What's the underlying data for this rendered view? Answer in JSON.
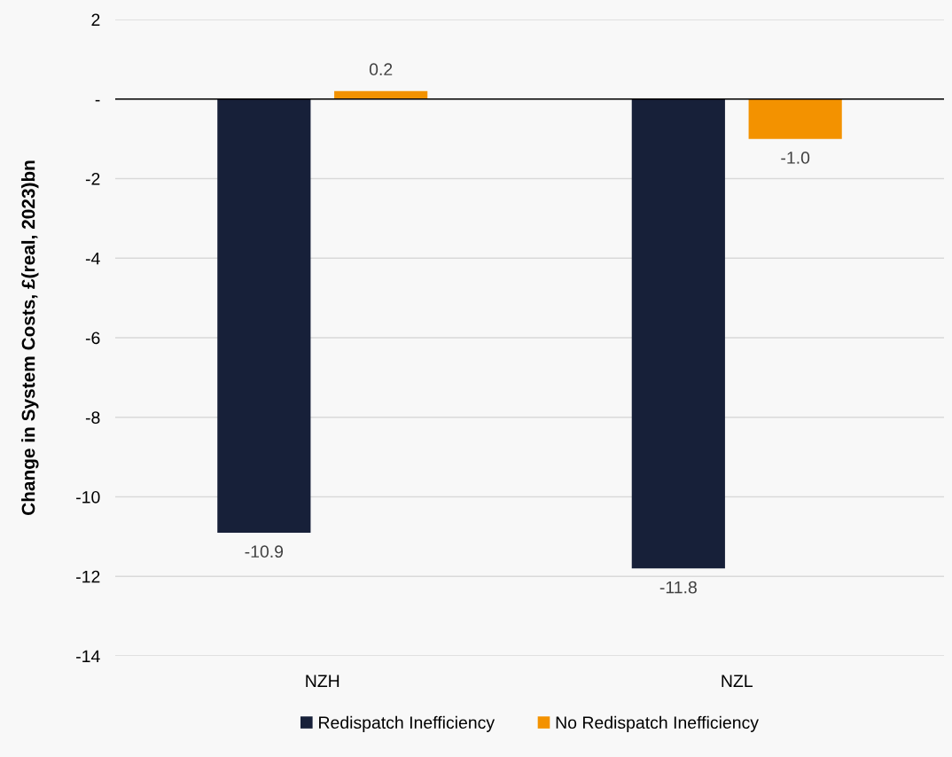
{
  "chart_data": {
    "type": "bar",
    "ylabel": "Change in System Costs, £(real, 2023)bn",
    "categories": [
      "NZH",
      "NZL"
    ],
    "series": [
      {
        "name": "Redispatch Inefficiency",
        "color": "#172039",
        "values": [
          -10.9,
          -11.8
        ],
        "value_labels": [
          "-10.9",
          "-11.8"
        ]
      },
      {
        "name": "No Redispatch Inefficiency",
        "color": "#f39200",
        "values": [
          0.2,
          -1.0
        ],
        "value_labels": [
          "0.2",
          "-1.0"
        ]
      }
    ],
    "ylim": [
      -14,
      2
    ],
    "yticks": [
      -14,
      -12,
      -10,
      -8,
      -6,
      -4,
      -2,
      {
        "value": 0,
        "label": "-"
      },
      2
    ],
    "grid": "y",
    "legend": "bottom"
  }
}
